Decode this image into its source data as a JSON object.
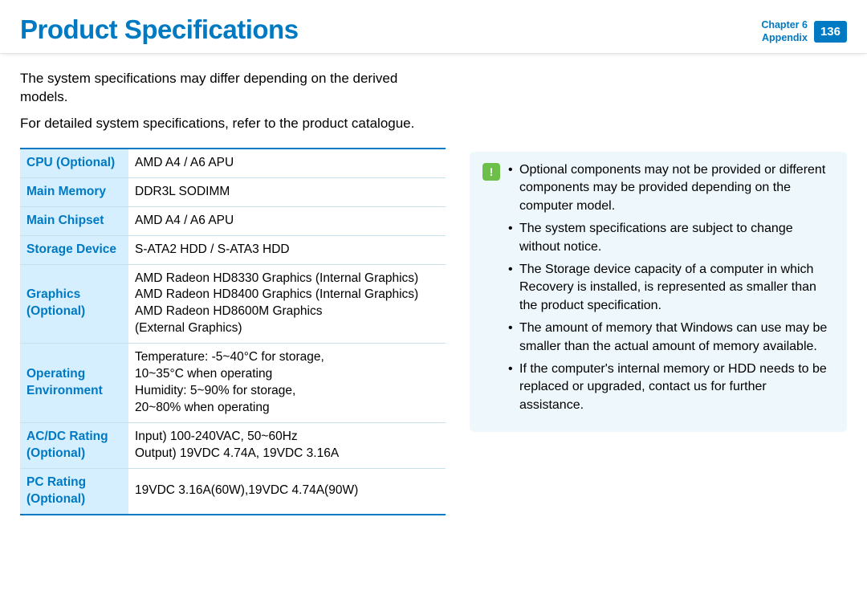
{
  "header": {
    "title": "Product Specifications",
    "chapter_line1": "Chapter 6",
    "chapter_line2": "Appendix",
    "page_number": "136"
  },
  "intro": {
    "p1": "The system specifications may differ depending on the derived models.",
    "p2": "For detailed system specifications, refer to the product catalogue."
  },
  "specs": {
    "rows": [
      {
        "label": "CPU (Optional)",
        "value": "AMD A4 / A6 APU"
      },
      {
        "label": "Main Memory",
        "value": "DDR3L SODIMM"
      },
      {
        "label": "Main Chipset",
        "value": "AMD A4 / A6 APU"
      },
      {
        "label": "Storage Device",
        "value": "S-ATA2 HDD / S-ATA3 HDD"
      },
      {
        "label": "Graphics (Optional)",
        "value": "AMD Radeon HD8330 Graphics (Internal Graphics)\nAMD Radeon HD8400 Graphics (Internal Graphics)\nAMD Radeon HD8600M Graphics\n(External Graphics)"
      },
      {
        "label": "Operating Environment",
        "value": "Temperature: -5~40°C for storage,\n                         10~35°C when operating\nHumidity: 5~90% for storage,\n                 20~80% when operating"
      },
      {
        "label": "AC/DC Rating (Optional)",
        "value": "Input) 100-240VAC, 50~60Hz\nOutput) 19VDC 4.74A, 19VDC 3.16A"
      },
      {
        "label": "PC Rating (Optional)",
        "value": "19VDC 3.16A(60W),19VDC 4.74A(90W)"
      }
    ]
  },
  "notes": {
    "items": [
      "Optional components may not be provided or different components may be provided depending on the computer model.",
      "The system specifications are subject to change without notice.",
      "The Storage device capacity of a computer in which Recovery is installed, is represented as smaller than the product specification.",
      "The amount of memory that Windows can use may be smaller than the actual amount of memory available.",
      "If the computer's internal memory or HDD needs to be replaced or upgraded, contact us for further assistance."
    ]
  },
  "colors": {
    "accent": "#0079c3",
    "table_header_bg": "#d5efff",
    "note_bg": "#eef7fb",
    "note_icon_bg": "#6cc04a"
  }
}
